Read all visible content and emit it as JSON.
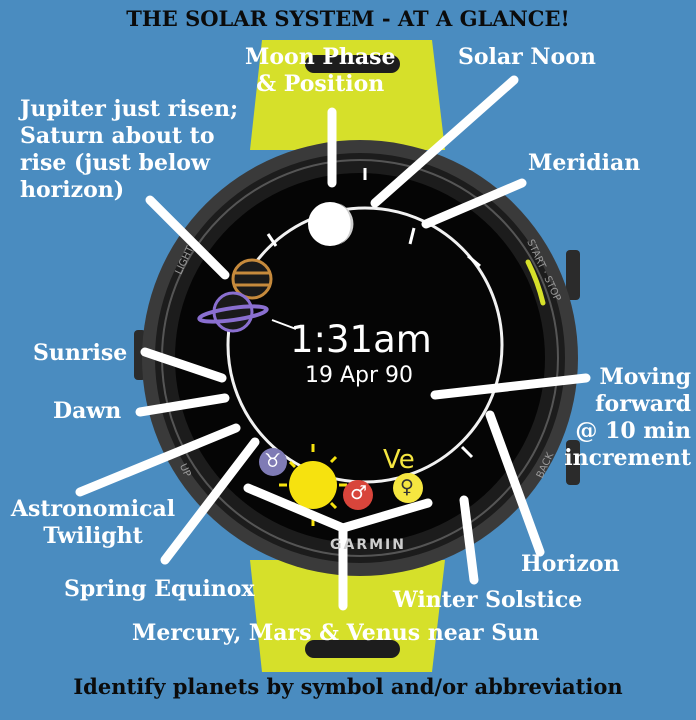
{
  "title": "THE SOLAR SYSTEM - AT A GLANCE!",
  "footer": "Identify planets by symbol and/or abbreviation",
  "watch": {
    "time": "1:31am",
    "date": "19 Apr 90",
    "brand": "GARMIN",
    "button_light": "LIGHT",
    "button_start_stop": "START · STOP",
    "button_back": "BACK",
    "button_up": "UP"
  },
  "planet_labels": {
    "venus_abbrev": "Ve",
    "taurus_symbol": "♉",
    "mars_symbol": "♂",
    "venus_symbol": "♀"
  },
  "annotations": {
    "moon": "Moon Phase\n& Position",
    "solar_noon": "Solar Noon",
    "jupiter_saturn": "Jupiter just risen;\nSaturn about to\nrise (just below\nhorizon)",
    "meridian": "Meridian",
    "sunrise": "Sunrise",
    "dawn": "Dawn",
    "moving_forward": "Moving\nforward\n@ 10 min\nincrement",
    "astronomical_twilight": "Astronomical\nTwilight",
    "spring_equinox": "Spring Equinox",
    "horizon": "Horizon",
    "winter_solstice": "Winter Solstice",
    "mercury_mars_venus": "Mercury, Mars & Venus near Sun"
  },
  "colors": {
    "background": "#4a8cc0",
    "strap": "#d6e02a",
    "sun": "#f6e20f",
    "venus": "#f5e640",
    "mars": "#d8453b",
    "saturn": "#8a6fd0",
    "jupiter": "#c68a3c"
  }
}
